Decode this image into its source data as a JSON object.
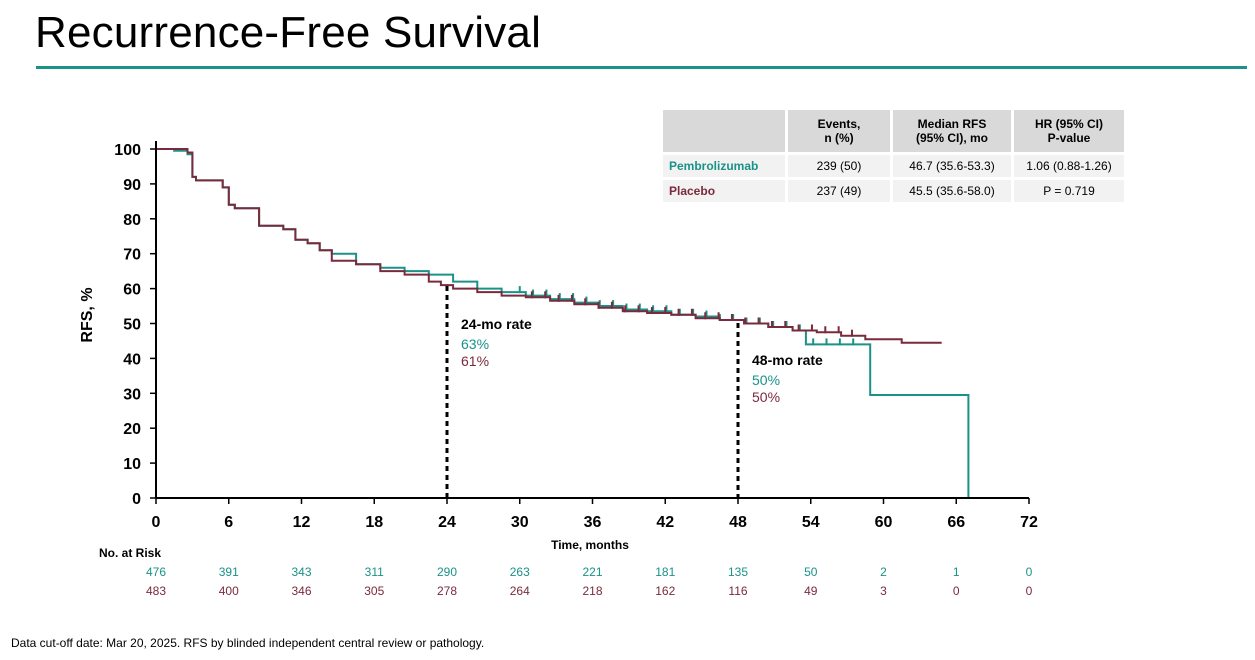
{
  "title": "Recurrence-Free Survival",
  "colors": {
    "accent": "#1a9288",
    "pembrolizumab": "#1a9288",
    "placebo": "#7a2a3c"
  },
  "table": {
    "headers": [
      "",
      "Events,\nn (%)",
      "Median RFS\n(95% CI), mo",
      "HR (95% CI)\nP-value"
    ],
    "rows": [
      {
        "arm": "Pembrolizumab",
        "events": "239 (50)",
        "median": "46.7 (35.6-53.3)",
        "hr": "1.06 (0.88-1.26)"
      },
      {
        "arm": "Placebo",
        "events": "237 (49)",
        "median": "45.5 (35.6-58.0)",
        "hr": "P = 0.719"
      }
    ]
  },
  "chart_data": {
    "type": "line",
    "title": "",
    "xlabel": "Time, months",
    "ylabel": "RFS, %",
    "xlim": [
      0,
      72
    ],
    "ylim": [
      0,
      100
    ],
    "xticks": [
      0,
      6,
      12,
      18,
      24,
      30,
      36,
      42,
      48,
      54,
      60,
      66,
      72
    ],
    "yticks": [
      0,
      10,
      20,
      30,
      40,
      50,
      60,
      70,
      80,
      90,
      100
    ],
    "series": [
      {
        "name": "Pembrolizumab",
        "color": "#1a9288",
        "x": [
          0,
          1.5,
          2.6,
          3,
          3.3,
          5.5,
          6,
          6.5,
          8.5,
          10.5,
          11.5,
          12.5,
          13.5,
          14.5,
          16.5,
          18.5,
          20.5,
          22.5,
          24.5,
          26.5,
          28.5,
          30.5,
          32.5,
          34.5,
          36.5,
          38.5,
          40.5,
          42.5,
          44.5,
          46.5,
          48.5,
          50.5,
          52.5,
          53.6,
          58.9,
          58.9,
          64,
          67,
          67
        ],
        "y": [
          100,
          99.5,
          98.5,
          92,
          91,
          89,
          84,
          83,
          78,
          77,
          74,
          73,
          71,
          70,
          67,
          66,
          65,
          64,
          62,
          60,
          59,
          58,
          57,
          56,
          55,
          54,
          53.5,
          52.5,
          52,
          51,
          50,
          49,
          48,
          44,
          44,
          29.5,
          29.5,
          29.5,
          0
        ]
      },
      {
        "name": "Placebo",
        "color": "#7a2a3c",
        "x": [
          0,
          2.6,
          3,
          3.3,
          5.5,
          6,
          6.5,
          8.5,
          10.5,
          11.5,
          12.5,
          13.5,
          14.5,
          16.5,
          18.5,
          20.5,
          22.5,
          23.5,
          24.5,
          26.5,
          28.5,
          30.5,
          32.5,
          34.5,
          36.5,
          38.5,
          40.5,
          42.5,
          44.5,
          46.5,
          48.5,
          50.5,
          52.5,
          54.5,
          56.5,
          58.5,
          61.5,
          64.8
        ],
        "y": [
          100,
          99,
          92,
          91,
          89,
          84,
          83,
          78,
          77,
          74,
          73,
          71,
          68,
          67,
          65,
          64,
          62,
          61,
          60,
          59,
          58,
          57.5,
          56.5,
          55.5,
          54.5,
          53.5,
          53,
          52.5,
          51.5,
          51,
          50,
          49,
          48,
          47.5,
          46.5,
          45.5,
          44.5,
          44.5
        ]
      }
    ],
    "annotations": [
      {
        "x": 24,
        "label": "24-mo rate",
        "pembrolizumab": "63%",
        "placebo": "61%"
      },
      {
        "x": 48,
        "label": "48-mo rate",
        "pembrolizumab": "50%",
        "placebo": "50%"
      }
    ],
    "risk_table": {
      "label": "No. at Risk",
      "times": [
        0,
        6,
        12,
        18,
        24,
        30,
        36,
        42,
        48,
        54,
        60,
        66,
        72
      ],
      "pembrolizumab": [
        476,
        391,
        343,
        311,
        290,
        263,
        221,
        181,
        135,
        50,
        2,
        1,
        0
      ],
      "placebo": [
        483,
        400,
        346,
        305,
        278,
        264,
        218,
        162,
        116,
        49,
        3,
        0,
        0
      ]
    }
  },
  "footnote": "Data cut-off date: Mar 20, 2025. RFS by blinded independent central review or pathology."
}
